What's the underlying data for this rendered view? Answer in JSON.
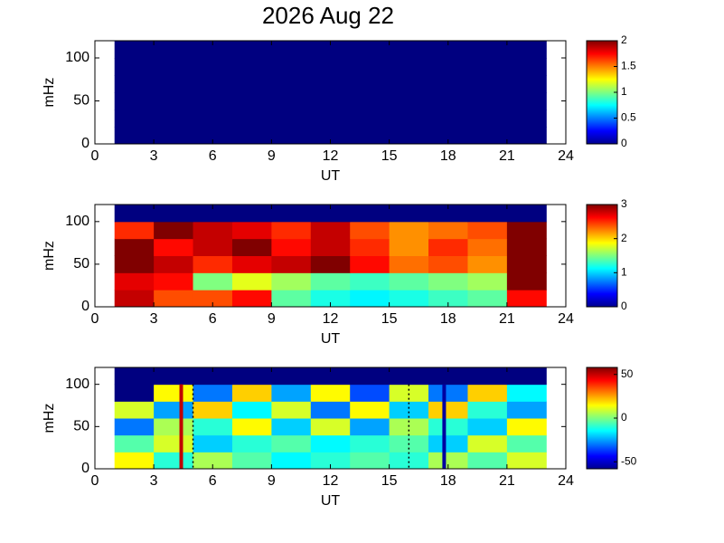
{
  "chart_data": [
    {
      "type": "heatmap",
      "title": "2026 Aug 22",
      "xlabel": "UT",
      "ylabel": "mHz",
      "xlim": [
        0,
        24
      ],
      "xticks": [
        0,
        3,
        6,
        9,
        12,
        15,
        18,
        21,
        24
      ],
      "ylim": [
        0,
        120
      ],
      "yticks": [
        0,
        50,
        100
      ],
      "xbins": [
        1,
        3,
        5,
        7,
        9,
        11,
        13,
        15,
        17,
        19,
        21,
        23
      ],
      "ybins": [
        0,
        20,
        40,
        60,
        80,
        100,
        120
      ],
      "z": [
        [
          0,
          0,
          0,
          0,
          0,
          0,
          0,
          0,
          0,
          0,
          0
        ],
        [
          0,
          0,
          0,
          0,
          0,
          0,
          0,
          0,
          0,
          0,
          0
        ],
        [
          0,
          0,
          0,
          0,
          0,
          0,
          0,
          0,
          0,
          0,
          0
        ],
        [
          0,
          0,
          0,
          0,
          0,
          0,
          0,
          0,
          0,
          0,
          0
        ],
        [
          0,
          0,
          0,
          0,
          0,
          0,
          0,
          0,
          0,
          0,
          0
        ],
        [
          0,
          0,
          0,
          0,
          0,
          0,
          0,
          0,
          0,
          0,
          0
        ]
      ],
      "colormap": "jet",
      "clim": [
        0,
        2
      ],
      "cticks": [
        0,
        0.5,
        1,
        1.5,
        2
      ]
    },
    {
      "type": "heatmap",
      "xlabel": "UT",
      "ylabel": "mHz",
      "xlim": [
        0,
        24
      ],
      "xticks": [
        0,
        3,
        6,
        9,
        12,
        15,
        18,
        21,
        24
      ],
      "ylim": [
        0,
        120
      ],
      "yticks": [
        0,
        50,
        100
      ],
      "xbins": [
        1,
        3,
        5,
        7,
        9,
        11,
        13,
        15,
        17,
        19,
        21,
        23
      ],
      "ybins": [
        0,
        20,
        40,
        60,
        80,
        100,
        120
      ],
      "z": [
        [
          2.8,
          2.4,
          2.4,
          2.6,
          1.4,
          1.2,
          1.1,
          1.2,
          1.3,
          1.4,
          2.6
        ],
        [
          2.7,
          2.6,
          1.5,
          1.8,
          1.6,
          1.4,
          1.3,
          1.4,
          1.5,
          1.6,
          3
        ],
        [
          3,
          2.8,
          2.5,
          2.7,
          2.8,
          3,
          2.6,
          2.3,
          2.4,
          2.2,
          3
        ],
        [
          3,
          2.6,
          2.8,
          3,
          2.6,
          2.8,
          2.5,
          2.2,
          2.5,
          2.3,
          3
        ],
        [
          2.5,
          3,
          2.8,
          2.7,
          2.5,
          2.8,
          2.4,
          2.2,
          2.3,
          2.4,
          3
        ],
        [
          0,
          0,
          0,
          0,
          0,
          0,
          0,
          0,
          0,
          0,
          0
        ]
      ],
      "colormap": "jet",
      "clim": [
        0,
        3
      ],
      "cticks": [
        0,
        1,
        2,
        3
      ]
    },
    {
      "type": "heatmap",
      "xlabel": "UT",
      "ylabel": "mHz",
      "xlim": [
        0,
        24
      ],
      "xticks": [
        0,
        3,
        6,
        9,
        12,
        15,
        18,
        21,
        24
      ],
      "ylim": [
        0,
        120
      ],
      "yticks": [
        0,
        50,
        100
      ],
      "xbins": [
        1,
        3,
        5,
        7,
        9,
        11,
        13,
        15,
        17,
        19,
        21,
        23
      ],
      "ybins": [
        0,
        20,
        40,
        60,
        80,
        100,
        120
      ],
      "z": [
        [
          15,
          -10,
          5,
          -5,
          -15,
          -10,
          -5,
          -10,
          5,
          -5,
          10
        ],
        [
          -5,
          10,
          -20,
          -10,
          -5,
          -15,
          -10,
          -5,
          -20,
          10,
          -5
        ],
        [
          -30,
          5,
          -10,
          15,
          -20,
          10,
          -25,
          5,
          -10,
          -20,
          15
        ],
        [
          10,
          -25,
          20,
          -15,
          10,
          -30,
          15,
          -20,
          20,
          -10,
          -25
        ],
        [
          -58,
          15,
          -30,
          20,
          -25,
          15,
          -35,
          10,
          -30,
          20,
          -15
        ],
        [
          -58,
          -58,
          -58,
          -58,
          -58,
          -58,
          -58,
          -58,
          -58,
          -58,
          -58
        ]
      ],
      "colormap": "jet",
      "clim": [
        -58,
        58
      ],
      "cticks": [
        -50,
        0,
        50
      ],
      "vlines": [
        {
          "x": 4.4,
          "color": "#c00000",
          "style": "solid"
        },
        {
          "x": 5,
          "color": "#000000",
          "style": "dotted"
        },
        {
          "x": 16,
          "color": "#000000",
          "style": "dotted"
        },
        {
          "x": 17.8,
          "color": "#0000a0",
          "style": "solid"
        }
      ]
    }
  ]
}
